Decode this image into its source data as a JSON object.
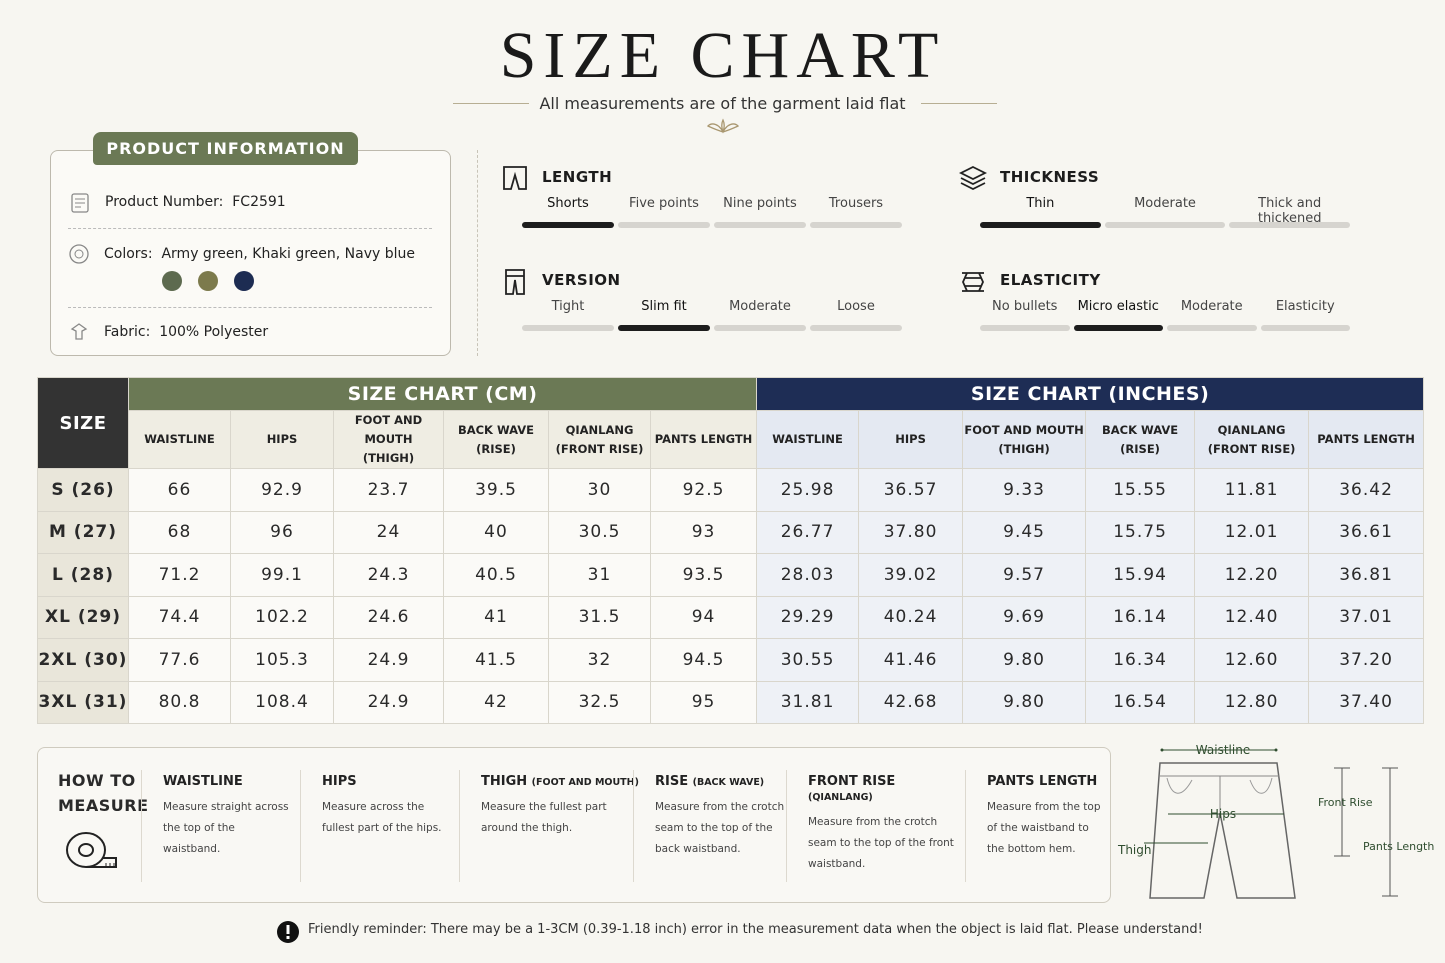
{
  "header": {
    "title": "SIZE CHART",
    "subtitle": "All measurements are of the garment laid flat"
  },
  "product_info": {
    "title": "PRODUCT INFORMATION",
    "number_label": "Product Number:",
    "number": "FC2591",
    "colors_label": "Colors:",
    "colors": "Army green, Khaki green, Navy blue",
    "swatches": [
      "#5d6a4f",
      "#7c7a4c",
      "#1d2c52"
    ],
    "fabric_label": "Fabric:",
    "fabric": "100% Polyester"
  },
  "attributes": [
    {
      "title": "LENGTH",
      "options": [
        "Shorts",
        "Five points",
        "Nine points",
        "Trousers"
      ],
      "selected": 0
    },
    {
      "title": "THICKNESS",
      "options": [
        "Thin",
        "Moderate",
        "Thick and thickened"
      ],
      "selected": 0
    },
    {
      "title": "VERSION",
      "options": [
        "Tight",
        "Slim fit",
        "Moderate",
        "Loose"
      ],
      "selected": 1
    },
    {
      "title": "ELASTICITY",
      "options": [
        "No bullets",
        "Micro elastic",
        "Moderate",
        "Elasticity"
      ],
      "selected": 1
    }
  ],
  "table": {
    "size_header": "SIZE",
    "cm_title": "SIZE CHART (CM)",
    "inch_title": "SIZE CHART (INCHES)",
    "columns": [
      {
        "name": "WAISTLINE"
      },
      {
        "name": "HIPS"
      },
      {
        "name": "FOOT AND MOUTH",
        "sub": "(THIGH)"
      },
      {
        "name": "BACK WAVE",
        "sub": "(RISE)"
      },
      {
        "name": "QIANLANG",
        "sub": "(FRONT RISE)"
      },
      {
        "name": "PANTS LENGTH"
      }
    ],
    "rows": [
      {
        "size": "S (26)",
        "cm": [
          "66",
          "92.9",
          "23.7",
          "39.5",
          "30",
          "92.5"
        ],
        "inches": [
          "25.98",
          "36.57",
          "9.33",
          "15.55",
          "11.81",
          "36.42"
        ]
      },
      {
        "size": "M (27)",
        "cm": [
          "68",
          "96",
          "24",
          "40",
          "30.5",
          "93"
        ],
        "inches": [
          "26.77",
          "37.80",
          "9.45",
          "15.75",
          "12.01",
          "36.61"
        ]
      },
      {
        "size": "L (28)",
        "cm": [
          "71.2",
          "99.1",
          "24.3",
          "40.5",
          "31",
          "93.5"
        ],
        "inches": [
          "28.03",
          "39.02",
          "9.57",
          "15.94",
          "12.20",
          "36.81"
        ]
      },
      {
        "size": "XL (29)",
        "cm": [
          "74.4",
          "102.2",
          "24.6",
          "41",
          "31.5",
          "94"
        ],
        "inches": [
          "29.29",
          "40.24",
          "9.69",
          "16.14",
          "12.40",
          "37.01"
        ]
      },
      {
        "size": "2XL (30)",
        "cm": [
          "77.6",
          "105.3",
          "24.9",
          "41.5",
          "32",
          "94.5"
        ],
        "inches": [
          "30.55",
          "41.46",
          "9.80",
          "16.34",
          "12.60",
          "37.20"
        ]
      },
      {
        "size": "3XL (31)",
        "cm": [
          "80.8",
          "108.4",
          "24.9",
          "42",
          "32.5",
          "95"
        ],
        "inches": [
          "31.81",
          "42.68",
          "9.80",
          "16.54",
          "12.80",
          "37.40"
        ]
      }
    ]
  },
  "how_to": {
    "title": [
      "HOW TO",
      "MEASURE"
    ],
    "items": [
      {
        "title": "WAISTLINE",
        "text": "Measure straight across the top of the waistband."
      },
      {
        "title": "HIPS",
        "text": "Measure across the fullest part of the hips."
      },
      {
        "title": "THIGH",
        "sub": "(FOOT AND MOUTH)",
        "text": "Measure the fullest part around the thigh."
      },
      {
        "title": "RISE",
        "sub": "(BACK WAVE)",
        "text": "Measure from the crotch seam to the top of the back waistband."
      },
      {
        "title": "FRONT RISE",
        "sub": "(QIANLANG)",
        "text": "Measure from the crotch seam to the top of the front waistband."
      },
      {
        "title": "PANTS LENGTH",
        "text": "Measure from the top of the waistband to the bottom hem."
      }
    ]
  },
  "diagram": {
    "waistline": "Waistline",
    "hips": "Hips",
    "front_rise": "Front Rise",
    "thigh": "Thigh",
    "pants_length": "Pants Length"
  },
  "reminder": "Friendly reminder: There may be a 1-3CM (0.39-1.18 inch) error in the measurement data when the object is laid flat. Please understand!"
}
